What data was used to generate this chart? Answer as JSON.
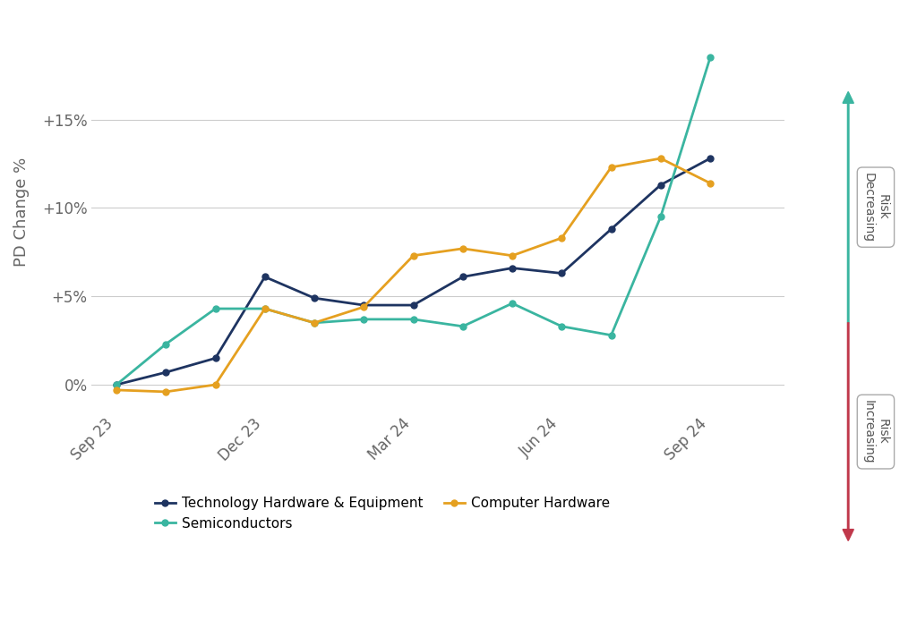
{
  "ylabel": "PD Change %",
  "x_positions": [
    0,
    1,
    2,
    3,
    4,
    5,
    6,
    7,
    8,
    9,
    10,
    11,
    12
  ],
  "tech_hardware": [
    0.0,
    -0.7,
    -1.5,
    -6.1,
    -4.9,
    -4.5,
    -4.5,
    -6.1,
    -6.6,
    -6.3,
    -8.8,
    -11.3,
    -12.8
  ],
  "semiconductors": [
    0.0,
    -2.3,
    -4.3,
    -4.3,
    -3.5,
    -3.7,
    -3.7,
    -3.3,
    -4.6,
    -3.3,
    -2.8,
    -9.5,
    -18.5
  ],
  "computer_hardware": [
    0.3,
    0.4,
    0.0,
    -4.3,
    -3.5,
    -4.4,
    -7.3,
    -7.7,
    -7.3,
    -8.3,
    -12.3,
    -12.8,
    -11.4
  ],
  "tech_hardware_color": "#1e3461",
  "semiconductors_color": "#3ab5a0",
  "computer_hardware_color": "#e5a020",
  "background_color": "#ffffff",
  "grid_color": "#cccccc",
  "ytick_labels": [
    "0%",
    "+5%",
    "+10%",
    "+15%"
  ],
  "ytick_values": [
    0,
    -5,
    -10,
    -15
  ],
  "xtick_positions": [
    0,
    3,
    6,
    9,
    12
  ],
  "xtick_labels": [
    "Sep 23",
    "Dec 23",
    "Mar 24",
    "Jun 24",
    "Sep 24"
  ],
  "risk_decreasing_color": "#3ab5a0",
  "risk_increasing_color": "#c0384b",
  "legend_labels": [
    "Technology Hardware & Equipment",
    "Semiconductors",
    "Computer Hardware"
  ]
}
